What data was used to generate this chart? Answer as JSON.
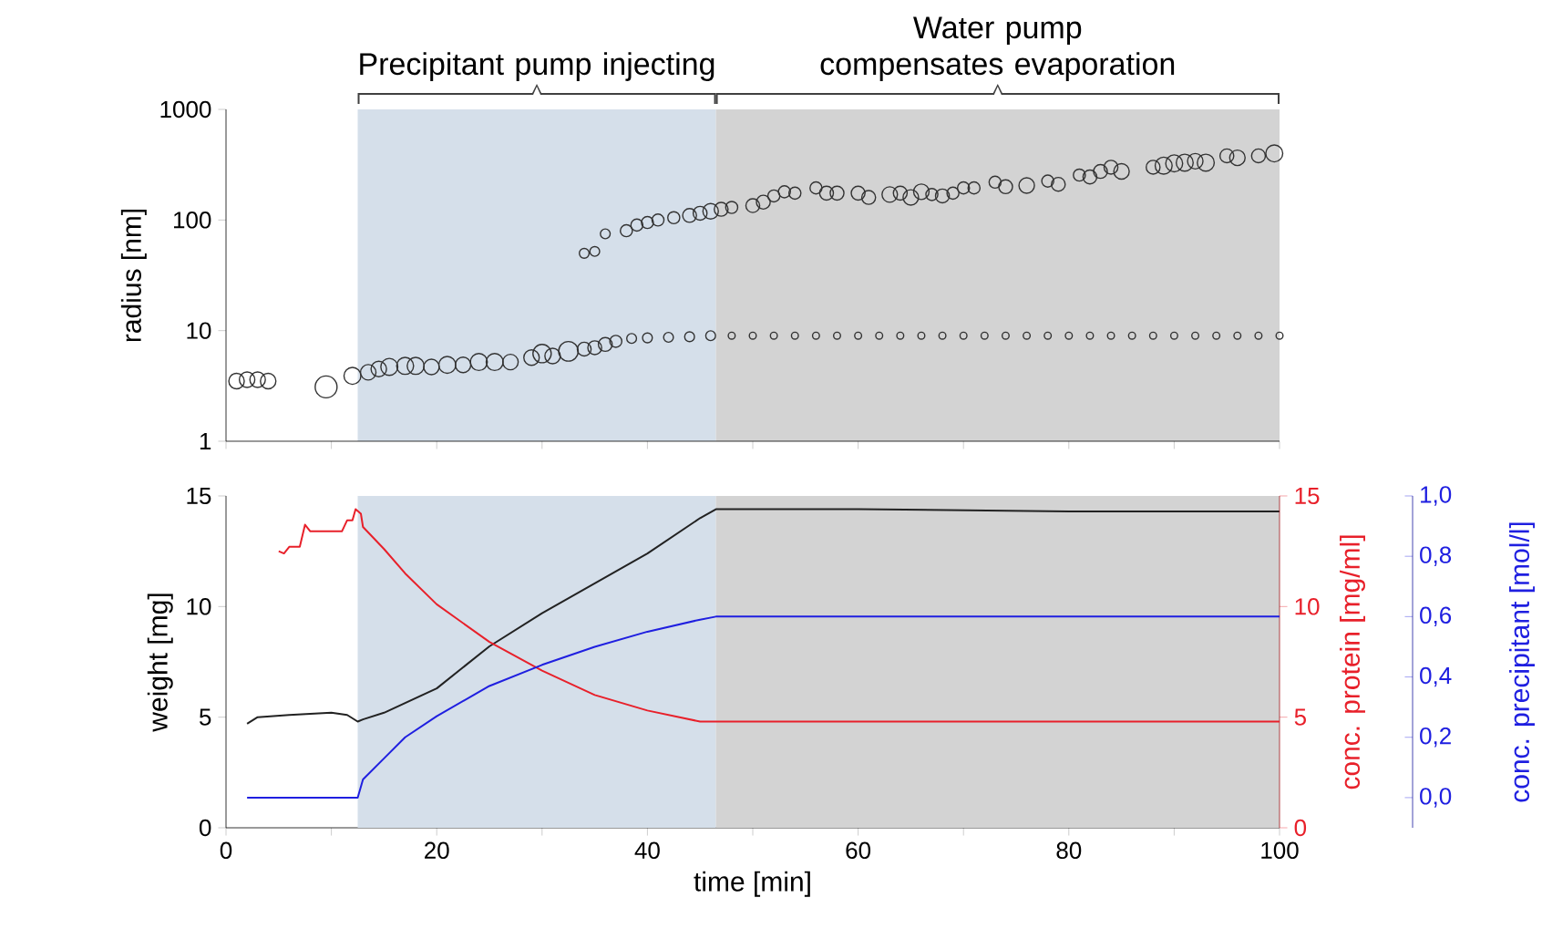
{
  "chart_data": [
    {
      "type": "bubble",
      "ylabel": "radius [nm]",
      "log": true,
      "xlim": [
        0,
        100
      ],
      "ylim": [
        1,
        1000
      ],
      "xticks": [
        0,
        10,
        20,
        30,
        40,
        50,
        60,
        70,
        80,
        90,
        100
      ],
      "yticks": [
        1,
        10,
        100,
        1000
      ],
      "tick_labels": "y",
      "color": "#333333",
      "bands": [
        {
          "axis": "x",
          "from": 12.5,
          "to": 46.5,
          "label": "Precipitant pump injecting",
          "color": "#d5dfea"
        },
        {
          "axis": "x",
          "from": 46.5,
          "to": 100,
          "label": "Water pump compensates evaporation",
          "color": "#d3d3d3"
        }
      ],
      "x": [
        1,
        2,
        3,
        4,
        9.5,
        12,
        13.5,
        14.5,
        15.5,
        17,
        18,
        19.5,
        21,
        22.5,
        24,
        25.5,
        27,
        29,
        30,
        31,
        32.5,
        34,
        35,
        36,
        37,
        38.5,
        40,
        42,
        44,
        46,
        48,
        50,
        52,
        54,
        56,
        58,
        60,
        62,
        64,
        66,
        68,
        70,
        72,
        74,
        76,
        78,
        80,
        82,
        84,
        86,
        88,
        90,
        92,
        94,
        96,
        98,
        100,
        34,
        35,
        36,
        38,
        39,
        40,
        41,
        42.5,
        44,
        45,
        46,
        47,
        48,
        50,
        51,
        52,
        53,
        54,
        56,
        57,
        58,
        60,
        61,
        63,
        64,
        65,
        66,
        67,
        68,
        69,
        70,
        71,
        73,
        74,
        76,
        78,
        79,
        81,
        82,
        83,
        84,
        85,
        88,
        89,
        90,
        91,
        92,
        93,
        95,
        96,
        98,
        99.5
      ],
      "values": [
        3.5,
        3.6,
        3.6,
        3.5,
        3.1,
        3.9,
        4.2,
        4.5,
        4.7,
        4.8,
        4.8,
        4.7,
        4.9,
        4.9,
        5.2,
        5.2,
        5.2,
        5.7,
        6.2,
        5.9,
        6.5,
        6.8,
        7,
        7.5,
        8,
        8.5,
        8.6,
        8.7,
        8.8,
        9,
        9,
        9,
        9,
        9,
        9,
        9,
        9,
        9,
        9,
        9,
        9,
        9,
        9,
        9,
        9,
        9,
        9,
        9,
        9,
        9,
        9,
        9,
        9,
        9,
        9,
        9,
        9,
        50,
        52,
        75,
        80,
        90,
        95,
        100,
        105,
        110,
        115,
        120,
        125,
        130,
        135,
        145,
        165,
        180,
        175,
        195,
        175,
        175,
        175,
        160,
        170,
        175,
        160,
        180,
        170,
        165,
        175,
        195,
        195,
        220,
        200,
        205,
        225,
        210,
        255,
        245,
        275,
        300,
        275,
        300,
        310,
        325,
        330,
        340,
        330,
        380,
        365,
        380,
        400
      ],
      "sizes": [
        0.5,
        0.5,
        0.5,
        0.5,
        1,
        0.6,
        0.5,
        0.5,
        0.6,
        0.6,
        0.6,
        0.5,
        0.6,
        0.5,
        0.6,
        0.6,
        0.5,
        0.5,
        0.7,
        0.5,
        0.8,
        0.4,
        0.4,
        0.4,
        0.3,
        0.2,
        0.2,
        0.2,
        0.2,
        0.2,
        0.1,
        0.1,
        0.1,
        0.1,
        0.1,
        0.1,
        0.1,
        0.1,
        0.1,
        0.1,
        0.1,
        0.1,
        0.1,
        0.1,
        0.1,
        0.1,
        0.1,
        0.1,
        0.1,
        0.1,
        0.1,
        0.1,
        0.1,
        0.1,
        0.1,
        0.1,
        0.1,
        0.2,
        0.2,
        0.2,
        0.3,
        0.3,
        0.3,
        0.3,
        0.3,
        0.4,
        0.4,
        0.5,
        0.4,
        0.3,
        0.4,
        0.4,
        0.3,
        0.3,
        0.3,
        0.3,
        0.4,
        0.4,
        0.4,
        0.4,
        0.5,
        0.4,
        0.5,
        0.5,
        0.3,
        0.4,
        0.3,
        0.3,
        0.3,
        0.3,
        0.4,
        0.5,
        0.3,
        0.4,
        0.3,
        0.4,
        0.4,
        0.4,
        0.5,
        0.4,
        0.6,
        0.6,
        0.6,
        0.5,
        0.6,
        0.4,
        0.5,
        0.4,
        0.6
      ]
    },
    {
      "type": "line",
      "xlabel": "time [min]",
      "ylabel": "weight [mg]",
      "y2label": "conc. protein [mg/ml]",
      "y3label": "conc. precipitant [mol/l]",
      "xlim": [
        0,
        100
      ],
      "ylim": [
        0,
        15
      ],
      "y2lim": [
        0,
        15
      ],
      "y3lim": [
        -0.1,
        1.0
      ],
      "xticks": [
        0,
        {
          "value": 10,
          "label": null
        },
        20,
        {
          "value": 30,
          "label": null
        },
        40,
        {
          "value": 50,
          "label": null
        },
        60,
        {
          "value": 70,
          "label": null
        },
        80,
        {
          "value": 90,
          "label": null
        },
        100
      ],
      "yticks": [
        0,
        5,
        10,
        15
      ],
      "y2ticks": [
        0,
        5,
        10,
        15
      ],
      "y3ticks": [
        {
          "value": 0,
          "label": "0,0"
        },
        {
          "value": 0.2,
          "label": "0,2"
        },
        {
          "value": 0.4,
          "label": "0,4"
        },
        {
          "value": 0.6,
          "label": "0,6"
        },
        {
          "value": 0.8,
          "label": "0,8"
        },
        {
          "value": 1.0,
          "label": "1,0"
        }
      ],
      "bands": [
        {
          "axis": "x",
          "from": 12.5,
          "to": 46.5,
          "color": "#d5dfea"
        },
        {
          "axis": "x",
          "from": 46.5,
          "to": 100,
          "color": "#d3d3d3"
        }
      ],
      "series": [
        {
          "color": "#222222",
          "x": [
            2,
            3,
            6,
            10,
            11.5,
            12.5,
            13,
            15,
            20,
            25,
            30,
            40,
            45,
            46.5,
            50,
            60,
            80,
            100
          ],
          "values": [
            4.7,
            5.0,
            5.1,
            5.2,
            5.1,
            4.8,
            4.9,
            5.2,
            6.3,
            8.2,
            9.7,
            12.4,
            14.0,
            14.4,
            14.4,
            14.4,
            14.3,
            14.3
          ]
        },
        {
          "color": "#e8202a",
          "axis": "y2",
          "x": [
            5,
            5.5,
            6,
            7,
            7.5,
            8,
            11,
            11.5,
            12,
            12.3,
            12.8,
            13,
            15,
            17,
            20,
            25,
            30,
            35,
            40,
            45,
            50,
            100
          ],
          "values": [
            12.5,
            12.4,
            12.7,
            12.7,
            13.7,
            13.4,
            13.4,
            13.9,
            13.9,
            14.4,
            14.2,
            13.6,
            12.6,
            11.5,
            10.1,
            8.4,
            7.1,
            6.0,
            5.3,
            4.8,
            4.8,
            4.8
          ]
        },
        {
          "color": "#1f1fe0",
          "axis": "y3",
          "x": [
            2,
            12.5,
            13,
            15,
            17,
            20,
            25,
            30,
            35,
            40,
            45,
            46.5,
            100
          ],
          "values": [
            0,
            0,
            0.06,
            0.13,
            0.2,
            0.27,
            0.37,
            0.44,
            0.5,
            0.55,
            0.59,
            0.6,
            0.6
          ]
        }
      ]
    }
  ]
}
